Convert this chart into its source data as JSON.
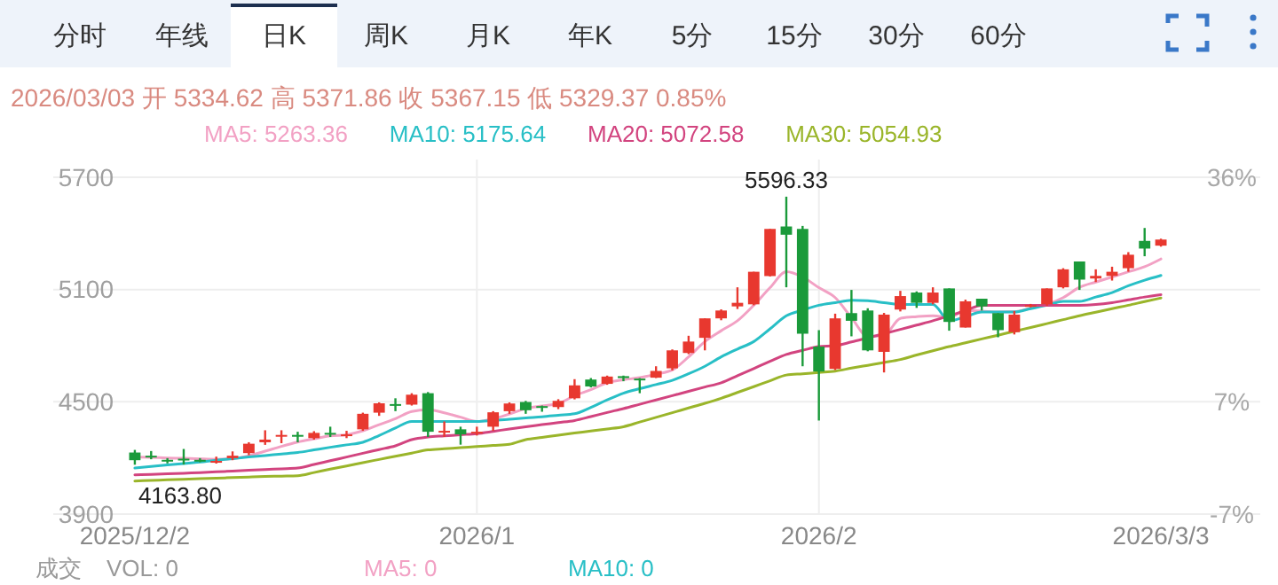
{
  "chart_data": {
    "type": "candlestick",
    "categories": [
      "2025/12/2",
      null,
      null,
      null,
      null,
      null,
      null,
      null,
      null,
      null,
      null,
      null,
      null,
      null,
      null,
      null,
      null,
      null,
      null,
      null,
      null,
      "2026/1",
      null,
      null,
      null,
      null,
      null,
      null,
      null,
      null,
      null,
      null,
      null,
      null,
      null,
      null,
      null,
      null,
      null,
      null,
      null,
      null,
      "2026/2",
      null,
      null,
      null,
      null,
      null,
      null,
      null,
      null,
      null,
      null,
      null,
      null,
      null,
      null,
      null,
      null,
      null,
      null,
      null,
      null,
      "2026/3/3"
    ],
    "ohlc": [
      [
        4229,
        4243,
        4163.8,
        4188
      ],
      [
        4212,
        4237,
        4193,
        4206
      ],
      [
        4190,
        4199,
        4171,
        4186
      ],
      [
        4196,
        4248,
        4165,
        4190
      ],
      [
        4190,
        4199,
        4177,
        4186
      ],
      [
        4180,
        4207,
        4170,
        4184
      ],
      [
        4199,
        4235,
        4188,
        4212
      ],
      [
        4226,
        4284,
        4215,
        4276
      ],
      [
        4284,
        4348,
        4270,
        4298
      ],
      [
        4315,
        4348,
        4279,
        4323
      ],
      [
        4323,
        4340,
        4284,
        4320
      ],
      [
        4306,
        4343,
        4298,
        4334
      ],
      [
        4334,
        4367,
        4312,
        4326
      ],
      [
        4320,
        4345,
        4306,
        4326
      ],
      [
        4353,
        4442,
        4345,
        4436
      ],
      [
        4442,
        4497,
        4425,
        4492
      ],
      [
        4488,
        4519,
        4450,
        4485
      ],
      [
        4485,
        4546,
        4480,
        4538
      ],
      [
        4546,
        4552,
        4312,
        4340
      ],
      [
        4340,
        4395,
        4312,
        4345
      ],
      [
        4353,
        4367,
        4271,
        4326
      ],
      [
        4334,
        4367,
        4320,
        4340
      ],
      [
        4367,
        4450,
        4345,
        4444
      ],
      [
        4450,
        4497,
        4436,
        4491
      ],
      [
        4499,
        4505,
        4436,
        4455
      ],
      [
        4477,
        4480,
        4447,
        4472
      ],
      [
        4472,
        4514,
        4461,
        4505
      ],
      [
        4519,
        4621,
        4513,
        4588
      ],
      [
        4619,
        4627,
        4577,
        4582
      ],
      [
        4596,
        4640,
        4591,
        4635
      ],
      [
        4637,
        4640,
        4610,
        4627
      ],
      [
        4624,
        4627,
        4546,
        4619
      ],
      [
        4629,
        4690,
        4627,
        4665
      ],
      [
        4679,
        4780,
        4668,
        4775
      ],
      [
        4761,
        4853,
        4755,
        4822
      ],
      [
        4842,
        4946,
        4775,
        4946
      ],
      [
        4946,
        4994,
        4936,
        4988
      ],
      [
        5010,
        5112,
        4996,
        5029
      ],
      [
        5021,
        5195,
        5016,
        5195
      ],
      [
        5172,
        5424,
        5170,
        5424
      ],
      [
        5437,
        5596.33,
        5112,
        5393
      ],
      [
        5424,
        5440,
        4690,
        4864
      ],
      [
        4795,
        4883,
        4400,
        4662
      ],
      [
        4676,
        4971,
        4670,
        4946
      ],
      [
        4974,
        5098,
        4850,
        4933
      ],
      [
        4988,
        5000,
        4770,
        4775
      ],
      [
        4767,
        4975,
        4657,
        4966
      ],
      [
        4993,
        5093,
        4983,
        5065
      ],
      [
        5084,
        5090,
        5002,
        5029
      ],
      [
        5029,
        5112,
        5021,
        5084
      ],
      [
        5106,
        5106,
        4880,
        4927
      ],
      [
        4897,
        5046,
        4897,
        5037
      ],
      [
        5051,
        5051,
        4988,
        5010
      ],
      [
        4974,
        4974,
        4845,
        4883
      ],
      [
        4872,
        4985,
        4860,
        4966
      ],
      [
        5013,
        5023,
        5005,
        5017
      ],
      [
        5021,
        5106,
        5013,
        5106
      ],
      [
        5112,
        5214,
        5106,
        5208
      ],
      [
        5250,
        5250,
        5098,
        5153
      ],
      [
        5159,
        5208,
        5140,
        5173
      ],
      [
        5173,
        5222,
        5148,
        5195
      ],
      [
        5214,
        5300,
        5195,
        5286
      ],
      [
        5360,
        5429,
        5278,
        5319
      ],
      [
        5334.62,
        5371.86,
        5329.37,
        5367.15
      ]
    ],
    "series": [
      {
        "name": "MA5: 5263.36",
        "type": "line",
        "color": "#f2a1c4",
        "values": [
          4205,
          4203,
          4200,
          4198,
          4195,
          4193,
          4196,
          4212,
          4236,
          4262,
          4285,
          4302,
          4318,
          4324,
          4345,
          4378,
          4410,
          4448,
          4458,
          4441,
          4418,
          4395,
          4409,
          4435,
          4464,
          4478,
          4491,
          4533,
          4565,
          4602,
          4618,
          4629,
          4648,
          4670,
          4740,
          4822,
          4880,
          4933,
          5016,
          5110,
          5195,
          5167,
          5110,
          5057,
          4950,
          4850,
          4855,
          4946,
          4955,
          4960,
          4950,
          4988,
          4985,
          4980,
          4982,
          5000,
          5021,
          5057,
          5112,
          5140,
          5167,
          5195,
          5222,
          5263.36
        ]
      },
      {
        "name": "MA10: 5175.64",
        "type": "line",
        "color": "#28bfc6",
        "values": [
          4146,
          4155,
          4163,
          4170,
          4178,
          4188,
          4196,
          4205,
          4213,
          4221,
          4229,
          4243,
          4257,
          4270,
          4284,
          4320,
          4360,
          4395,
          4395,
          4395,
          4395,
          4395,
          4400,
          4407,
          4414,
          4420,
          4428,
          4436,
          4470,
          4510,
          4546,
          4570,
          4592,
          4615,
          4650,
          4690,
          4740,
          4782,
          4822,
          4890,
          4960,
          4990,
          5016,
          5030,
          5043,
          5040,
          5030,
          5020,
          5020,
          5020,
          4933,
          4955,
          4980,
          4980,
          4980,
          4998,
          5016,
          5037,
          5037,
          5060,
          5084,
          5120,
          5150,
          5175.64
        ]
      },
      {
        "name": "MA20: 5072.58",
        "type": "line",
        "color": "#d2447f",
        "values": [
          4110,
          4112,
          4115,
          4118,
          4122,
          4126,
          4130,
          4134,
          4138,
          4142,
          4146,
          4165,
          4185,
          4205,
          4225,
          4245,
          4265,
          4298,
          4312,
          4318,
          4324,
          4330,
          4342,
          4355,
          4367,
          4378,
          4389,
          4400,
          4421,
          4443,
          4464,
          4487,
          4510,
          4533,
          4556,
          4579,
          4602,
          4640,
          4678,
          4716,
          4753,
          4775,
          4795,
          4800,
          4820,
          4842,
          4864,
          4887,
          4910,
          4933,
          4960,
          4987,
          5016,
          5016,
          5016,
          5016,
          5016,
          5016,
          5016,
          5020,
          5030,
          5045,
          5060,
          5072.58
        ]
      },
      {
        "name": "MA30: 5054.93",
        "type": "line",
        "color": "#9ab52a",
        "values": [
          4077,
          4080,
          4083,
          4086,
          4089,
          4092,
          4095,
          4098,
          4101,
          4103,
          4105,
          4122,
          4140,
          4157,
          4175,
          4192,
          4209,
          4226,
          4243,
          4249,
          4255,
          4261,
          4267,
          4273,
          4298,
          4310,
          4322,
          4333,
          4344,
          4355,
          4367,
          4392,
          4417,
          4442,
          4467,
          4492,
          4519,
          4550,
          4581,
          4612,
          4643,
          4650,
          4657,
          4664,
          4680,
          4695,
          4710,
          4726,
          4750,
          4773,
          4795,
          4815,
          4836,
          4856,
          4877,
          4897,
          4918,
          4939,
          4960,
          4979,
          4998,
          5016,
          5036,
          5054.93
        ]
      }
    ],
    "ylim": [
      3900,
      5700
    ],
    "yticks": [
      3900,
      4500,
      5100,
      5700
    ],
    "y2lim": [
      -7,
      36
    ],
    "y2ticks": [
      {
        "value": -7,
        "label": "-7%"
      },
      {
        "value": 7.33,
        "label": "7%"
      },
      {
        "value": 36,
        "label": "36%"
      }
    ],
    "grid": true,
    "legend": "top left",
    "annotations": [
      "分时",
      "年线",
      "日K",
      "周K",
      "月K",
      "年K",
      "5分",
      "15分",
      "30分",
      "60分",
      "2026/03/03 开 5334.62 高 5371.86 收 5367.15 低 5329.37 0.85%",
      "成交",
      "VOL: 0",
      "MA5: 0",
      "MA10: 0",
      {
        "text": "5596.33",
        "y": 5596.33
      },
      {
        "text": "4163.80",
        "y": 4163.8
      }
    ]
  }
}
